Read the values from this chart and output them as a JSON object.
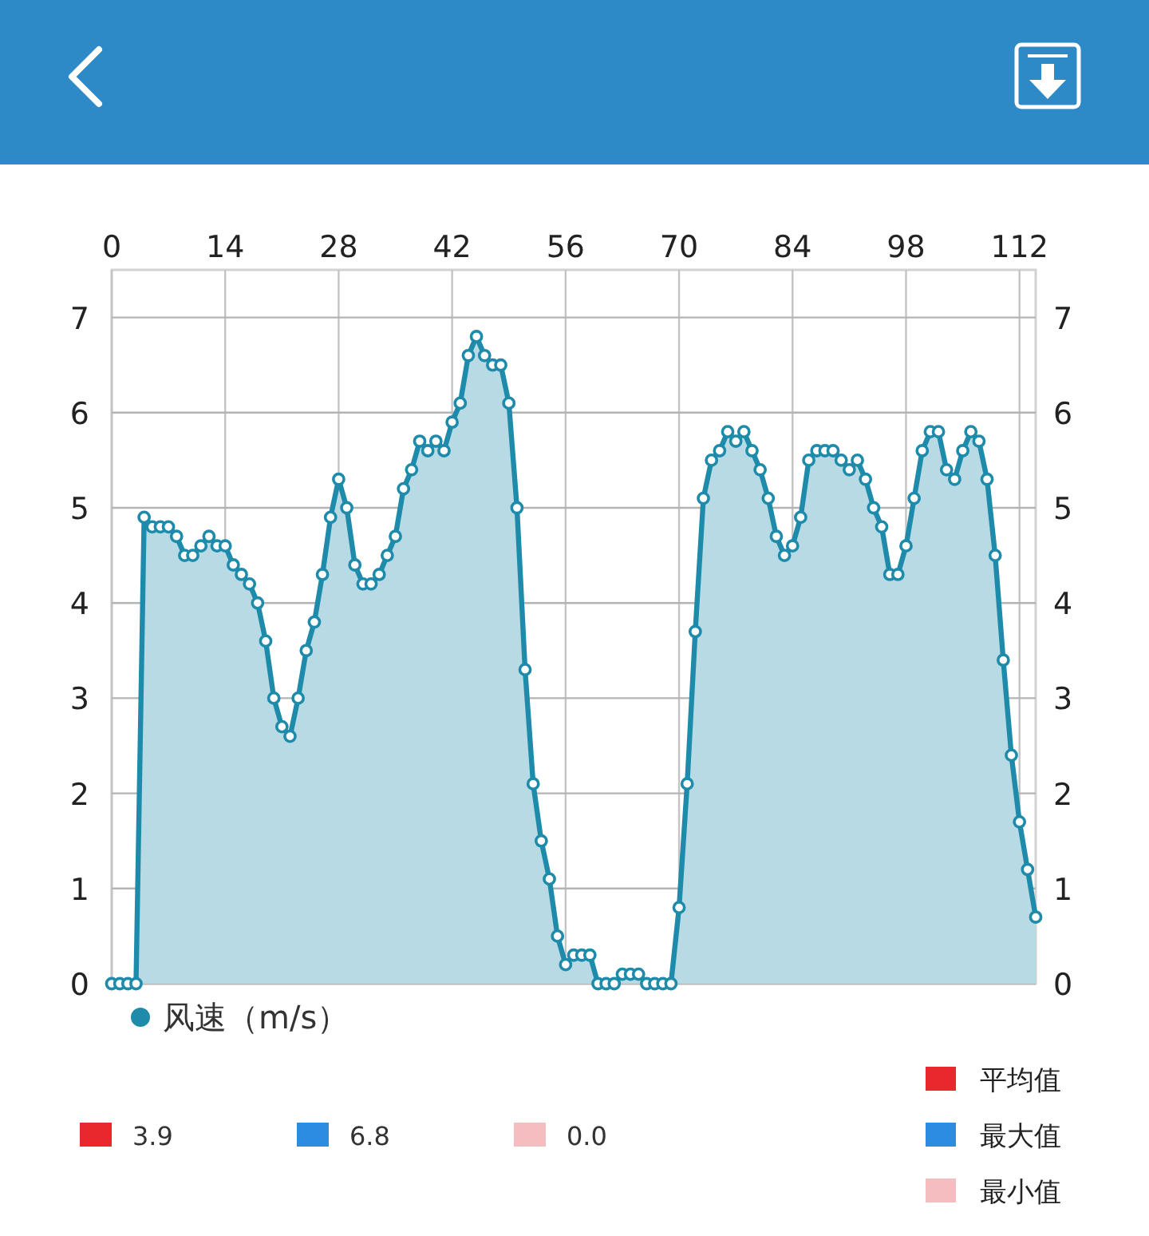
{
  "chart_data": [
    {
      "type": "area",
      "x": [
        0,
        1,
        2,
        3,
        4,
        5,
        6,
        7,
        8,
        9,
        10,
        11,
        12,
        13,
        14,
        15,
        16,
        17,
        18,
        19,
        20,
        21,
        22,
        23,
        24,
        25,
        26,
        27,
        28,
        29,
        30,
        31,
        32,
        33,
        34,
        35,
        36,
        37,
        38,
        39,
        40,
        41,
        42,
        43,
        44,
        45,
        46,
        47,
        48,
        49,
        50,
        51,
        52,
        53,
        54,
        55,
        56,
        57,
        58,
        59,
        60,
        61,
        62,
        63,
        64,
        65,
        66,
        67,
        68,
        69,
        70,
        71,
        72,
        73,
        74,
        75,
        76,
        77,
        78,
        79,
        80,
        81,
        82,
        83,
        84,
        85,
        86,
        87,
        88,
        89,
        90,
        91,
        92,
        93,
        94,
        95,
        96,
        97,
        98,
        99,
        100,
        101,
        102,
        103,
        104,
        105,
        106,
        107,
        108,
        109,
        110,
        111,
        112,
        113,
        114
      ],
      "series": [
        {
          "name": "风速（m/s）",
          "color": "#1f8bab",
          "values": [
            0,
            0,
            0,
            0,
            4.9,
            4.8,
            4.8,
            4.8,
            4.7,
            4.5,
            4.5,
            4.6,
            4.7,
            4.6,
            4.6,
            4.4,
            4.3,
            4.2,
            4.0,
            3.6,
            3.0,
            2.7,
            2.6,
            3.0,
            3.5,
            3.8,
            4.3,
            4.9,
            5.3,
            5.0,
            4.4,
            4.2,
            4.2,
            4.3,
            4.5,
            4.7,
            5.2,
            5.4,
            5.7,
            5.6,
            5.7,
            5.6,
            5.9,
            6.1,
            6.6,
            6.8,
            6.6,
            6.5,
            6.5,
            6.1,
            5.0,
            3.3,
            2.1,
            1.5,
            1.1,
            0.5,
            0.2,
            0.3,
            0.3,
            0.3,
            0,
            0,
            0,
            0.1,
            0.1,
            0.1,
            0,
            0,
            0,
            0,
            0.8,
            2.1,
            3.7,
            5.1,
            5.5,
            5.6,
            5.8,
            5.7,
            5.8,
            5.6,
            5.4,
            5.1,
            4.7,
            4.5,
            4.6,
            4.9,
            5.5,
            5.6,
            5.6,
            5.6,
            5.5,
            5.4,
            5.5,
            5.3,
            5.0,
            4.8,
            4.3,
            4.3,
            4.6,
            5.1,
            5.6,
            5.8,
            5.8,
            5.4,
            5.3,
            5.6,
            5.8,
            5.7,
            5.3,
            4.5,
            3.4,
            2.4,
            1.7,
            1.2,
            0.7
          ]
        }
      ],
      "xlim": [
        0,
        114
      ],
      "xticks": [
        0,
        14,
        28,
        42,
        56,
        70,
        84,
        98,
        112
      ],
      "ylim": [
        0,
        7.5
      ],
      "yticks": [
        0,
        1,
        2,
        3,
        4,
        5,
        6,
        7
      ],
      "y2lim": [
        0,
        7.5
      ],
      "y2ticks": [
        0,
        1,
        2,
        3,
        4,
        5,
        6,
        7
      ],
      "grid": true,
      "legend": "bottom left",
      "marker": "circle"
    },
    {
      "type": "other",
      "categories": [
        "平均值",
        "最大值",
        "最小值"
      ],
      "value_labels": [
        "3.9",
        "6.8",
        "0.0"
      ],
      "colors": [
        "#e8282c",
        "#2b8ce0",
        "#f5bdc0"
      ]
    }
  ]
}
